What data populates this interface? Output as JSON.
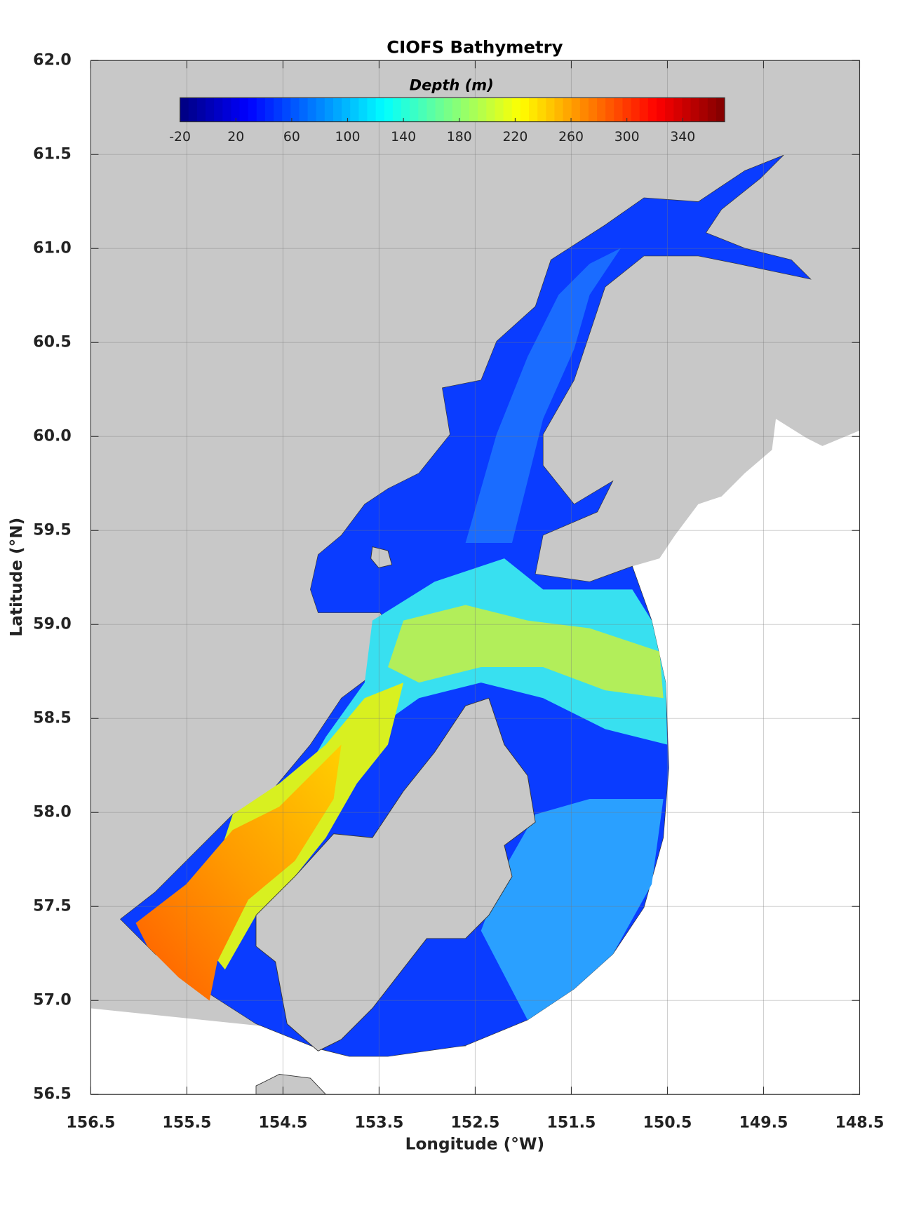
{
  "map": {
    "title": "CIOFS Bathymetry",
    "colorbar": {
      "label": "Depth (m)",
      "lim": [
        -20,
        370
      ],
      "ticks": [
        -20,
        20,
        60,
        100,
        140,
        180,
        220,
        260,
        300,
        340
      ],
      "colormap": "jet"
    },
    "xaxis": {
      "label": "Longitude (°W)",
      "lim": [
        156.5,
        148.5
      ],
      "ticks": [
        156.5,
        155.5,
        154.5,
        153.5,
        152.5,
        151.5,
        150.5,
        149.5,
        148.5
      ]
    },
    "yaxis": {
      "label": "Latitude (°N)",
      "lim": [
        56.5,
        62
      ],
      "ticks": [
        56.5,
        {
          "value": 57,
          "label": "57.0"
        },
        57.5,
        {
          "value": 58,
          "label": "58.0"
        },
        58.5,
        {
          "value": 59,
          "label": "59.0"
        },
        59.5,
        {
          "value": 60,
          "label": "60.0"
        },
        60.5,
        {
          "value": 61,
          "label": "61.0"
        },
        61.5,
        {
          "value": 62,
          "label": "62.0"
        }
      ]
    },
    "grid": true
  }
}
